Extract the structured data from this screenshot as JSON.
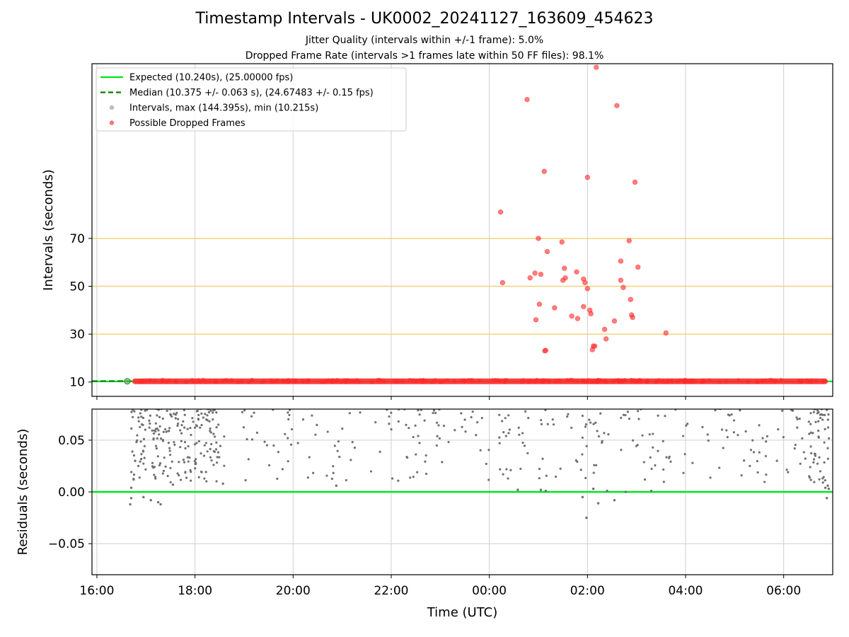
{
  "figure": {
    "title": "Timestamp Intervals - UK0002_20241127_163609_454623",
    "subtitle_1": "Jitter Quality (intervals within +/-1 frame): 5.0%",
    "subtitle_2": "Dropped Frame Rate (intervals >1 frames late within 50 FF files): 98.1%"
  },
  "chart_data": [
    {
      "type": "scatter",
      "panel": "intervals",
      "ylabel": "Intervals (seconds)",
      "xlabel": "",
      "x_unit": "hours since 16:00 UTC (Nov 27)",
      "xlim": [
        -0.1,
        15.0
      ],
      "ylim": [
        4,
        143
      ],
      "yticks": [
        10,
        30,
        50,
        70
      ],
      "reference_lines": [
        {
          "y": 30,
          "color": "#f5d27a"
        },
        {
          "y": 50,
          "color": "#f5d27a"
        },
        {
          "y": 70,
          "color": "#f5d27a"
        }
      ],
      "grid": "vertical",
      "legend_position": "top-left",
      "legend": [
        {
          "label": "Expected (10.240s), (25.00000 fps)",
          "style": "solid-line",
          "color": "#00e51a"
        },
        {
          "label": "Median (10.375 +/- 0.063 s), (24.67483 +/- 0.15 fps)",
          "style": "dashed-line",
          "color": "#007a00"
        },
        {
          "label": "Intervals, max (144.395s), min (10.215s)",
          "style": "dot",
          "color": "#999999"
        },
        {
          "label": "Possible Dropped Frames",
          "style": "dot",
          "color": "#ff2a2a"
        }
      ],
      "series": [
        {
          "name": "Expected (10.240s), (25.00000 fps)",
          "kind": "hline",
          "y": 10.24,
          "color": "#00e51a"
        },
        {
          "name": "Median (10.375 +/- 0.063 s), (24.67483 +/- 0.15 fps)",
          "kind": "hline-dashed",
          "y": 10.375,
          "color": "#007a00"
        },
        {
          "name": "Possible Dropped Frames",
          "kind": "band",
          "x_range": [
            0.72,
            14.9
          ],
          "y": 10.3,
          "color": "#ff2a2a"
        },
        {
          "name": "Possible Dropped Frames",
          "kind": "points",
          "color": "#ff2a2a",
          "points": [
            [
              8.23,
              81
            ],
            [
              8.27,
              51.5
            ],
            [
              8.77,
              128
            ],
            [
              8.83,
              53.5
            ],
            [
              8.93,
              55.5
            ],
            [
              8.95,
              36
            ],
            [
              9.0,
              70
            ],
            [
              9.02,
              42.5
            ],
            [
              9.05,
              55
            ],
            [
              9.12,
              98
            ],
            [
              9.13,
              23
            ],
            [
              9.15,
              23.2
            ],
            [
              9.18,
              64.5
            ],
            [
              9.33,
              41
            ],
            [
              9.48,
              68.5
            ],
            [
              9.5,
              52.5
            ],
            [
              9.53,
              57.5
            ],
            [
              9.55,
              53.5
            ],
            [
              9.68,
              37.5
            ],
            [
              9.78,
              56
            ],
            [
              9.8,
              36.5
            ],
            [
              9.92,
              41.5
            ],
            [
              9.92,
              53
            ],
            [
              9.95,
              51.5
            ],
            [
              10.0,
              49
            ],
            [
              10.0,
              95.5
            ],
            [
              10.05,
              40
            ],
            [
              10.07,
              38.5
            ],
            [
              10.1,
              23.5
            ],
            [
              10.12,
              25
            ],
            [
              10.15,
              25
            ],
            [
              10.18,
              141.5
            ],
            [
              10.35,
              32
            ],
            [
              10.38,
              28
            ],
            [
              10.55,
              35.5
            ],
            [
              10.6,
              125.5
            ],
            [
              10.68,
              52.5
            ],
            [
              10.68,
              60.5
            ],
            [
              10.73,
              49.5
            ],
            [
              10.85,
              69
            ],
            [
              10.88,
              44.5
            ],
            [
              10.9,
              38
            ],
            [
              10.92,
              37
            ],
            [
              10.97,
              93.5
            ],
            [
              11.03,
              58
            ],
            [
              11.6,
              30.5
            ]
          ]
        }
      ]
    },
    {
      "type": "scatter",
      "panel": "residuals",
      "ylabel": "Residuals (seconds)",
      "xlabel": "Time (UTC)",
      "x_unit": "hours since 16:00 UTC (Nov 27)",
      "xlim": [
        -0.1,
        15.0
      ],
      "ylim": [
        -0.08,
        0.08
      ],
      "yticks": [
        -0.05,
        0.0,
        0.05
      ],
      "ytick_labels": [
        "−0.05",
        "0.00",
        "0.05"
      ],
      "xticks": [
        0,
        2,
        4,
        6,
        8,
        10,
        12,
        14
      ],
      "xtick_labels": [
        "16:00",
        "18:00",
        "20:00",
        "22:00",
        "00:00",
        "02:00",
        "04:00",
        "06:00"
      ],
      "grid": "both",
      "series": [
        {
          "name": "Zero residual",
          "kind": "hline",
          "y": 0.0,
          "color": "#00e51a"
        },
        {
          "name": "Residuals",
          "kind": "points",
          "color": "#707070",
          "points": [
            [
              0.68,
              -0.012
            ],
            [
              0.7,
              -0.006
            ],
            [
              0.7,
              0.004
            ],
            [
              0.75,
              0.012
            ],
            [
              0.78,
              0.03
            ],
            [
              0.95,
              -0.005
            ],
            [
              1.1,
              -0.008
            ],
            [
              1.25,
              -0.01
            ],
            [
              1.3,
              -0.012
            ],
            [
              1.55,
              0.007
            ],
            [
              2.57,
              0.008
            ],
            [
              4.88,
              0.006
            ],
            [
              8.58,
              0.002
            ],
            [
              9.05,
              0.002
            ],
            [
              9.15,
              0.001
            ],
            [
              9.9,
              -0.005
            ],
            [
              9.98,
              -0.025
            ],
            [
              10.12,
              0.003
            ],
            [
              10.22,
              -0.011
            ],
            [
              10.4,
              0.001
            ],
            [
              10.55,
              -0.008
            ],
            [
              10.78,
              0.0
            ],
            [
              11.3,
              0.001
            ],
            [
              14.88,
              -0.006
            ],
            [
              14.85,
              0.004
            ],
            [
              14.9,
              0.006
            ],
            [
              14.92,
              0.003
            ]
          ],
          "scatter_region": {
            "x_range": [
              0.7,
              14.95
            ],
            "y_range": [
              0.005,
              0.08
            ],
            "count": 640,
            "early_dense_x": [
              0.7,
              2.5
            ],
            "late_dense_x": [
              14.5,
              14.95
            ]
          }
        }
      ]
    }
  ]
}
